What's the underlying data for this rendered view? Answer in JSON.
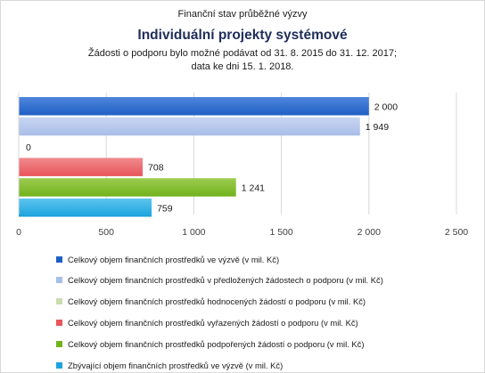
{
  "header": {
    "pretitle": "Finanční stav průběžné výzvy",
    "title": "Individuální projekty systémové",
    "subtitle_line1": "Žádosti o podporu bylo možné  podávat od 31. 8. 2015 do 31. 12. 2017;",
    "subtitle_line2": "data ke dni 15. 1. 2018."
  },
  "chart_data": {
    "type": "bar",
    "orientation": "horizontal",
    "xlim": [
      0,
      2500
    ],
    "x_ticks": [
      0,
      500,
      1000,
      1500,
      2000,
      2500
    ],
    "x_tick_labels": [
      "0",
      "500",
      "1 000",
      "1 500",
      "2 000",
      "2 500"
    ],
    "grid": true,
    "legend_position": "bottom",
    "series": [
      {
        "name": "Celkový objem finančních prostředků ve výzvě (v mil. Kč)",
        "value": 2000,
        "label": "2 000",
        "color": "#1f5fc4",
        "color_light": "#4f86dc"
      },
      {
        "name": "Celkový objem finančních prostředků v předložených žádostech o podporu (v mil. Kč)",
        "value": 1949,
        "label": "1 949",
        "color": "#a9bde8",
        "color_light": "#c8d6f2"
      },
      {
        "name": "Celkový objem finančních prostředků hodnocených žádostí o podporu (v mil. Kč)",
        "value": 0,
        "label": "0",
        "color": "#c9dcb0",
        "color_light": "#dde9cc"
      },
      {
        "name": "Celkový objem finančních prostředků vyřazených žádostí o podporu (v mil. Kč)",
        "value": 708,
        "label": "708",
        "color": "#e8555a",
        "color_light": "#f08a8d"
      },
      {
        "name": "Celkový objem finančních prostředků podpořených žádostí o podporu (v mil. Kč)",
        "value": 1241,
        "label": "1 241",
        "color": "#72b21c",
        "color_light": "#9ccc50"
      },
      {
        "name": "Zbývající objem finančních prostředků ve výzvě (v mil. Kč)",
        "value": 759,
        "label": "759",
        "color": "#1aa3dd",
        "color_light": "#5ec4ee"
      }
    ]
  }
}
